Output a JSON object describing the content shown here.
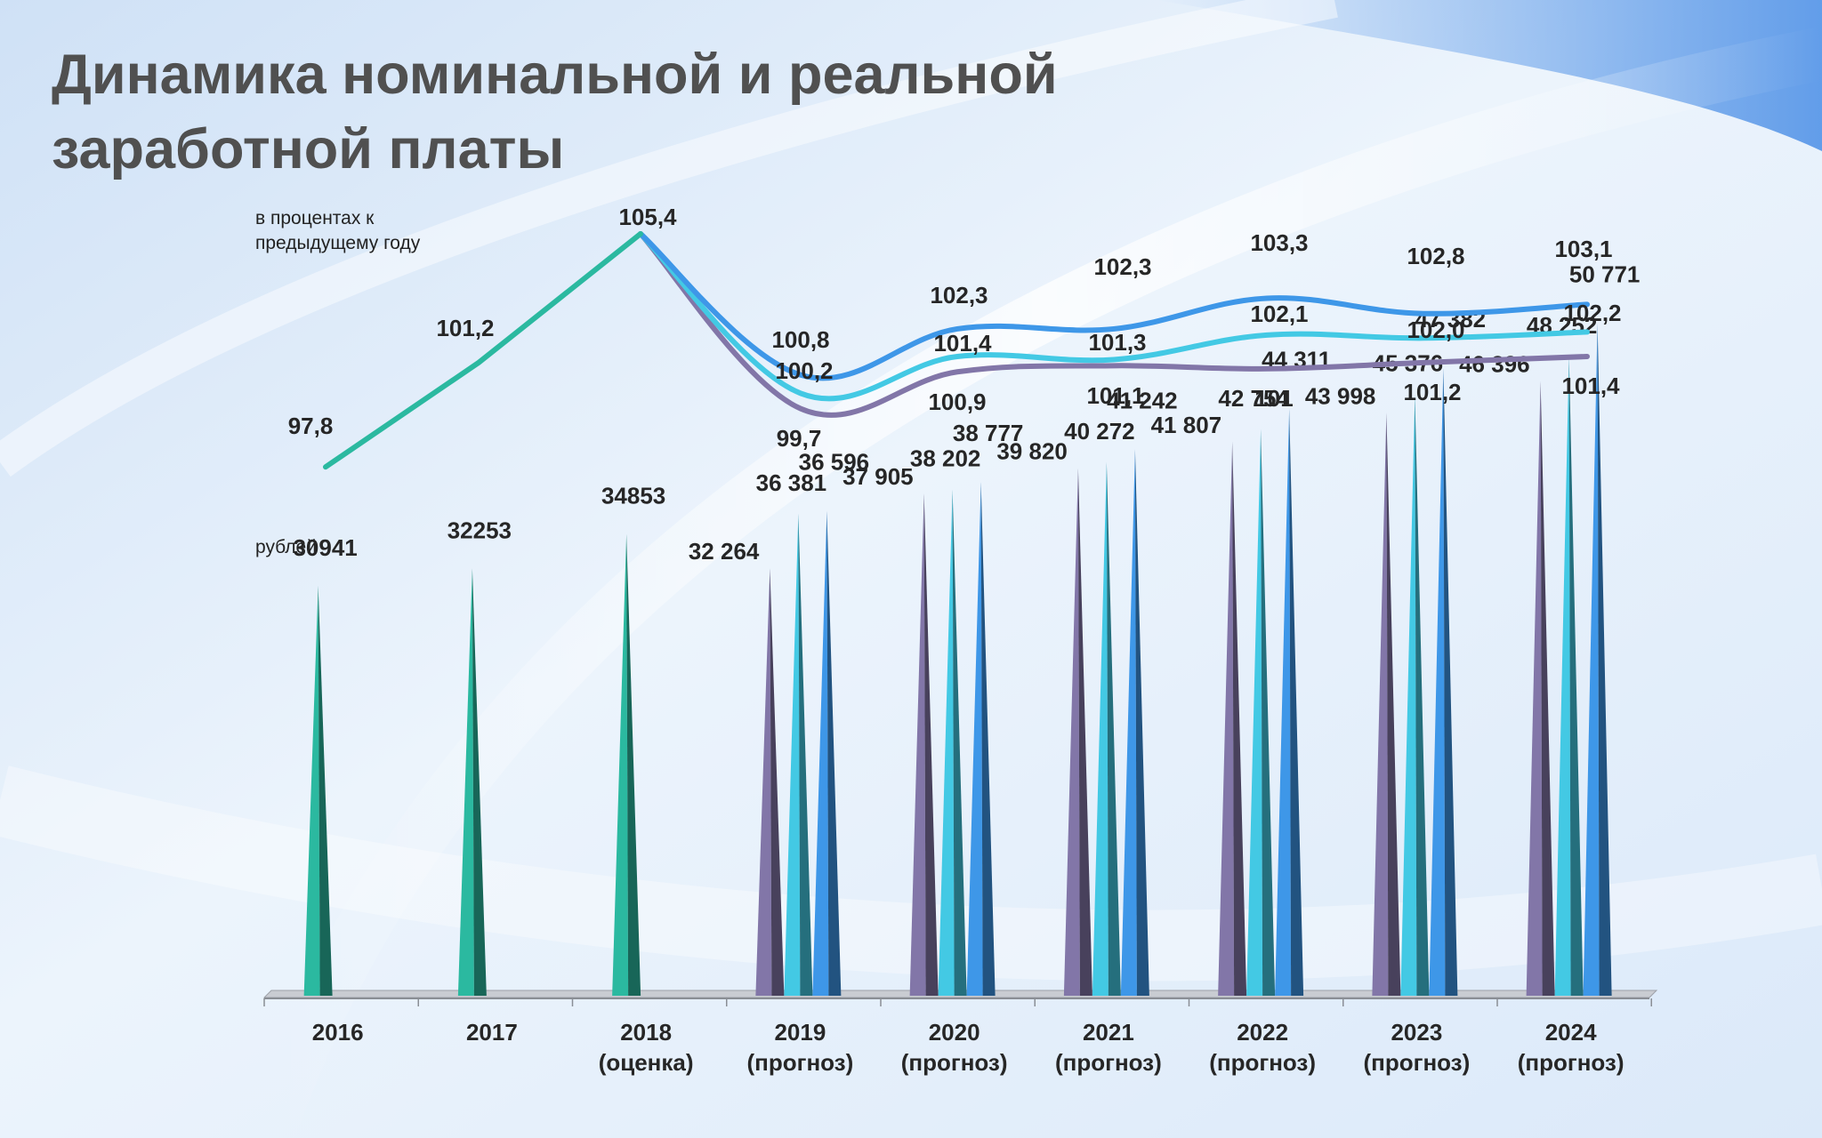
{
  "title": "Динамика номинальной и реальной заработной платы",
  "notes": {
    "percent_caption": "в процентах к предыдущему году",
    "rubles_caption": "рублей"
  },
  "colors": {
    "teal": "#2bb9a0",
    "purple": "#8276a8",
    "cyan": "#43c9e4",
    "blue": "#3e97e8"
  },
  "chart_data": [
    {
      "type": "line",
      "title": "в процентах к предыдущему году",
      "categories": [
        "2016",
        "2017",
        "2018 (оценка)",
        "2019 (прогноз)",
        "2020 (прогноз)",
        "2021 (прогноз)",
        "2022 (прогноз)",
        "2023 (прогноз)",
        "2024 (прогноз)"
      ],
      "series": [
        {
          "name": "history",
          "color_key": "teal",
          "label_display": [
            "97,8",
            "101,2",
            "105,4",
            null,
            null,
            null,
            null,
            null,
            null
          ],
          "values": [
            97.8,
            101.2,
            105.4,
            null,
            null,
            null,
            null,
            null,
            null
          ]
        },
        {
          "name": "variant 1",
          "color_key": "purple",
          "start_index": 2,
          "label_display": [
            null,
            null,
            null,
            "99,7",
            "100,9",
            "101,1",
            "101",
            "101,2",
            "101,4"
          ],
          "values": [
            null,
            null,
            105.4,
            99.7,
            100.9,
            101.1,
            101.0,
            101.2,
            101.4
          ]
        },
        {
          "name": "variant 2",
          "color_key": "cyan",
          "start_index": 2,
          "label_display": [
            null,
            null,
            null,
            "100,2",
            "101,4",
            "101,3",
            "102,1",
            "102,0",
            "102,2"
          ],
          "values": [
            null,
            null,
            105.4,
            100.2,
            101.4,
            101.3,
            102.1,
            102.0,
            102.2
          ]
        },
        {
          "name": "variant 3",
          "color_key": "blue",
          "start_index": 2,
          "label_display": [
            null,
            null,
            null,
            "100,8",
            "102,3",
            "102,3",
            "103,3",
            "102,8",
            "103,1"
          ],
          "values": [
            null,
            null,
            105.4,
            100.8,
            102.3,
            102.3,
            103.3,
            102.8,
            103.1
          ]
        }
      ]
    },
    {
      "type": "bar",
      "title": "рублей",
      "categories": [
        "2016",
        "2017",
        "2018 (оценка)",
        "2019 (прогноз)",
        "2020 (прогноз)",
        "2021 (прогноз)",
        "2022 (прогноз)",
        "2023 (прогноз)",
        "2024 (прогноз)"
      ],
      "category_lines": [
        [
          "2016"
        ],
        [
          "2017"
        ],
        [
          "2018",
          "(оценка)"
        ],
        [
          "2019",
          "(прогноз)"
        ],
        [
          "2020",
          "(прогноз)"
        ],
        [
          "2021",
          "(прогноз)"
        ],
        [
          "2022",
          "(прогноз)"
        ],
        [
          "2023",
          "(прогноз)"
        ],
        [
          "2024",
          "(прогноз)"
        ]
      ],
      "ylim": [
        0,
        55000
      ],
      "series": [
        {
          "name": "history",
          "color_key": "teal",
          "values": [
            30941,
            32253,
            34853,
            null,
            null,
            null,
            null,
            null,
            null
          ],
          "label_display": [
            "30941",
            "32253",
            "34853",
            null,
            null,
            null,
            null,
            null,
            null
          ]
        },
        {
          "name": "variant 1",
          "color_key": "purple",
          "values": [
            null,
            null,
            null,
            32264,
            37905,
            39820,
            41807,
            43998,
            46396
          ],
          "label_display": [
            null,
            null,
            null,
            "32 264",
            "37 905",
            "39 820",
            "41 807",
            "43 998",
            "46 396"
          ]
        },
        {
          "name": "variant 2",
          "color_key": "cyan",
          "values": [
            null,
            null,
            null,
            36381,
            38202,
            40272,
            42754,
            45376,
            48252
          ],
          "label_display": [
            null,
            null,
            null,
            "36 381",
            "38 202",
            "40 272",
            "42 754",
            "45 376",
            "48 252"
          ]
        },
        {
          "name": "variant 3",
          "color_key": "blue",
          "values": [
            null,
            null,
            null,
            36596,
            38777,
            41242,
            44311,
            47382,
            50771
          ],
          "label_display": [
            null,
            null,
            null,
            "36 596",
            "38 777",
            "41 242",
            "44 311",
            "47 382",
            "50 771"
          ]
        }
      ]
    }
  ]
}
